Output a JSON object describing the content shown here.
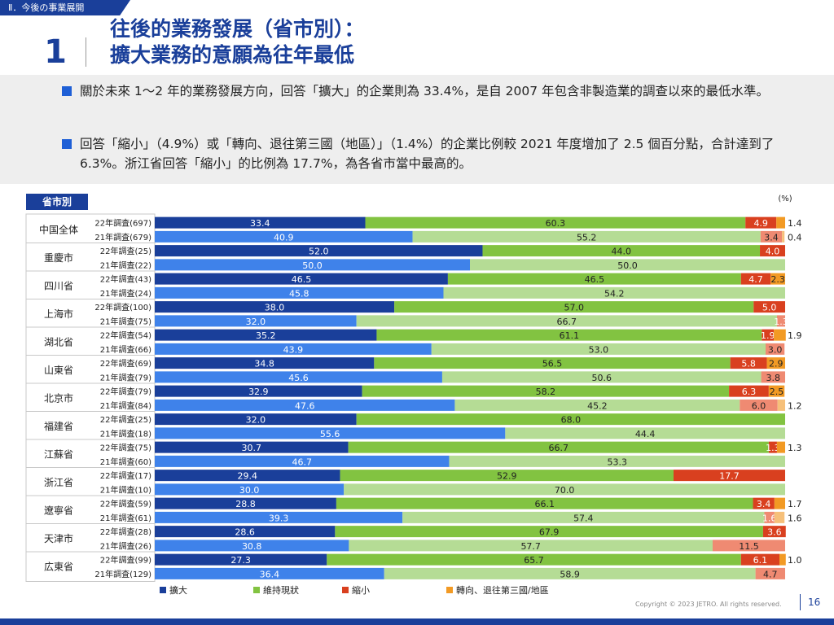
{
  "header": {
    "section_tag": "Ⅱ．今後の事業展開",
    "number": "1",
    "title_line1": "往後的業務發展（省市別）：",
    "title_line2": "擴大業務的意願為往年最低"
  },
  "summary": {
    "bullet1": "關於未來 1〜2 年的業務發展方向，回答「擴大」的企業則為 33.4%，是自 2007 年包含非製造業的調查以來的最低水準。",
    "bullet2": "回答「縮小」（4.9%）或「轉向、退往第三國（地區）」（1.4%）的企業比例較 2021 年度增加了 2.5 個百分點，合計達到了 6.3%。浙江省回答「縮小」的比例為 17.7%，為各省市當中最高的。"
  },
  "chart_data": {
    "type": "bar",
    "orientation": "horizontal",
    "stacked": true,
    "group_header": "省市別",
    "unit": "(%)",
    "xlim": [
      0,
      100
    ],
    "legend_position": "bottom",
    "series": [
      {
        "name": "擴大",
        "color_22": "#1a3f9a",
        "color_21": "#3f82ea"
      },
      {
        "name": "維持現狀",
        "color_22": "#82c341",
        "color_21": "#b5dc95"
      },
      {
        "name": "縮小",
        "color_22": "#d9401f",
        "color_21": "#ef8a72"
      },
      {
        "name": "轉向、退往第三國/地區",
        "color_22": "#f29a24",
        "color_21": "#f6c07a"
      }
    ],
    "groups": [
      {
        "name": "中国全体",
        "rows": [
          {
            "label": "22年調査(697)",
            "values": [
              33.4,
              60.3,
              4.9,
              1.4
            ],
            "year": "22",
            "labels": [
              "33.4",
              "60.3",
              "4.9",
              "1.4"
            ]
          },
          {
            "label": "21年調査(679)",
            "values": [
              40.9,
              55.2,
              3.4,
              0.4
            ],
            "year": "21",
            "labels": [
              "40.9",
              "55.2",
              "3.4",
              "0.4"
            ]
          }
        ]
      },
      {
        "name": "重慶市",
        "rows": [
          {
            "label": "22年調査(25)",
            "values": [
              52.0,
              44.0,
              4.0,
              0
            ],
            "year": "22",
            "labels": [
              "52.0",
              "44.0",
              "4.0",
              ""
            ]
          },
          {
            "label": "21年調査(22)",
            "values": [
              50.0,
              50.0,
              0,
              0
            ],
            "year": "21",
            "labels": [
              "50.0",
              "50.0",
              "",
              ""
            ]
          }
        ]
      },
      {
        "name": "四川省",
        "rows": [
          {
            "label": "22年調査(43)",
            "values": [
              46.5,
              46.5,
              4.7,
              2.3
            ],
            "year": "22",
            "labels": [
              "46.5",
              "46.5",
              "4.7",
              "2.3"
            ]
          },
          {
            "label": "21年調査(24)",
            "values": [
              45.8,
              54.2,
              0,
              0
            ],
            "year": "21",
            "labels": [
              "45.8",
              "54.2",
              "",
              ""
            ]
          }
        ]
      },
      {
        "name": "上海市",
        "rows": [
          {
            "label": "22年調査(100)",
            "values": [
              38.0,
              57.0,
              5.0,
              0
            ],
            "year": "22",
            "labels": [
              "38.0",
              "57.0",
              "5.0",
              ""
            ]
          },
          {
            "label": "21年調査(75)",
            "values": [
              32.0,
              66.7,
              1.3,
              0
            ],
            "year": "21",
            "labels": [
              "32.0",
              "66.7",
              "1.3",
              ""
            ]
          }
        ]
      },
      {
        "name": "湖北省",
        "rows": [
          {
            "label": "22年調査(54)",
            "values": [
              35.2,
              61.1,
              1.9,
              1.9
            ],
            "year": "22",
            "labels": [
              "35.2",
              "61.1",
              "1.9",
              "1.9"
            ]
          },
          {
            "label": "21年調査(66)",
            "values": [
              43.9,
              53.0,
              3.0,
              0
            ],
            "year": "21",
            "labels": [
              "43.9",
              "53.0",
              "3.0",
              ""
            ]
          }
        ]
      },
      {
        "name": "山東省",
        "rows": [
          {
            "label": "22年調査(69)",
            "values": [
              34.8,
              56.5,
              5.8,
              2.9
            ],
            "year": "22",
            "labels": [
              "34.8",
              "56.5",
              "5.8",
              "2.9"
            ]
          },
          {
            "label": "21年調査(79)",
            "values": [
              45.6,
              50.6,
              3.8,
              0
            ],
            "year": "21",
            "labels": [
              "45.6",
              "50.6",
              "3.8",
              ""
            ]
          }
        ]
      },
      {
        "name": "北京市",
        "rows": [
          {
            "label": "22年調査(79)",
            "values": [
              32.9,
              58.2,
              6.3,
              2.5
            ],
            "year": "22",
            "labels": [
              "32.9",
              "58.2",
              "6.3",
              "2.5"
            ]
          },
          {
            "label": "21年調査(84)",
            "values": [
              47.6,
              45.2,
              6.0,
              1.2
            ],
            "year": "21",
            "labels": [
              "47.6",
              "45.2",
              "6.0",
              "1.2"
            ]
          }
        ]
      },
      {
        "name": "福建省",
        "rows": [
          {
            "label": "22年調査(25)",
            "values": [
              32.0,
              68.0,
              0,
              0
            ],
            "year": "22",
            "labels": [
              "32.0",
              "68.0",
              "",
              ""
            ]
          },
          {
            "label": "21年調査(18)",
            "values": [
              55.6,
              44.4,
              0,
              0
            ],
            "year": "21",
            "labels": [
              "55.6",
              "44.4",
              "",
              ""
            ]
          }
        ]
      },
      {
        "name": "江蘇省",
        "rows": [
          {
            "label": "22年調査(75)",
            "values": [
              30.7,
              66.7,
              1.3,
              1.3
            ],
            "year": "22",
            "labels": [
              "30.7",
              "66.7",
              "1.3",
              "1.3"
            ]
          },
          {
            "label": "21年調査(60)",
            "values": [
              46.7,
              53.3,
              0,
              0
            ],
            "year": "21",
            "labels": [
              "46.7",
              "53.3",
              "",
              ""
            ]
          }
        ]
      },
      {
        "name": "浙江省",
        "rows": [
          {
            "label": "22年調査(17)",
            "values": [
              29.4,
              52.9,
              17.7,
              0
            ],
            "year": "22",
            "labels": [
              "29.4",
              "52.9",
              "17.7",
              ""
            ]
          },
          {
            "label": "21年調査(10)",
            "values": [
              30.0,
              70.0,
              0,
              0
            ],
            "year": "21",
            "labels": [
              "30.0",
              "70.0",
              "",
              ""
            ]
          }
        ]
      },
      {
        "name": "遼寧省",
        "rows": [
          {
            "label": "22年調査(59)",
            "values": [
              28.8,
              66.1,
              3.4,
              1.7
            ],
            "year": "22",
            "labels": [
              "28.8",
              "66.1",
              "3.4",
              "1.7"
            ]
          },
          {
            "label": "21年調査(61)",
            "values": [
              39.3,
              57.4,
              1.6,
              1.6
            ],
            "year": "21",
            "labels": [
              "39.3",
              "57.4",
              "1.6",
              "1.6"
            ]
          }
        ]
      },
      {
        "name": "天津市",
        "rows": [
          {
            "label": "22年調査(28)",
            "values": [
              28.6,
              67.9,
              3.6,
              0
            ],
            "year": "22",
            "labels": [
              "28.6",
              "67.9",
              "3.6",
              ""
            ]
          },
          {
            "label": "21年調査(26)",
            "values": [
              30.8,
              57.7,
              11.5,
              0
            ],
            "year": "21",
            "labels": [
              "30.8",
              "57.7",
              "11.5",
              ""
            ]
          }
        ]
      },
      {
        "name": "広東省",
        "rows": [
          {
            "label": "22年調査(99)",
            "values": [
              27.3,
              65.7,
              6.1,
              1.0
            ],
            "year": "22",
            "labels": [
              "27.3",
              "65.7",
              "6.1",
              "1.0"
            ]
          },
          {
            "label": "21年調査(129)",
            "values": [
              36.4,
              58.9,
              4.7,
              0
            ],
            "year": "21",
            "labels": [
              "36.4",
              "58.9",
              "4.7",
              ""
            ]
          }
        ]
      }
    ]
  },
  "footer": {
    "copyright": "Copyright © 2023 JETRO. All rights reserved.",
    "page": "16"
  }
}
